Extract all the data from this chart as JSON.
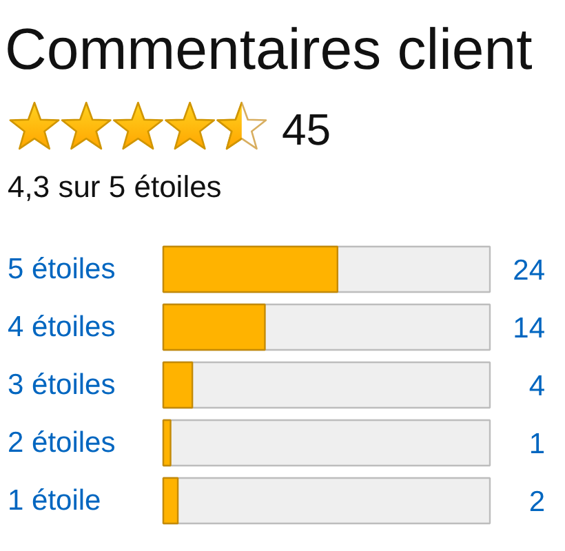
{
  "chart_data": {
    "type": "bar",
    "orientation": "horizontal",
    "title": "Commentaires client",
    "subtitle": "4,3 sur 5 étoiles",
    "annotations": [
      "45"
    ],
    "categories": [
      "5 étoiles",
      "4 étoiles",
      "3 étoiles",
      "2 étoiles",
      "1 étoile"
    ],
    "values": [
      24,
      14,
      4,
      1,
      2
    ],
    "color": "#ffb300",
    "data_labels": true,
    "tick_labels": "y"
  }
}
